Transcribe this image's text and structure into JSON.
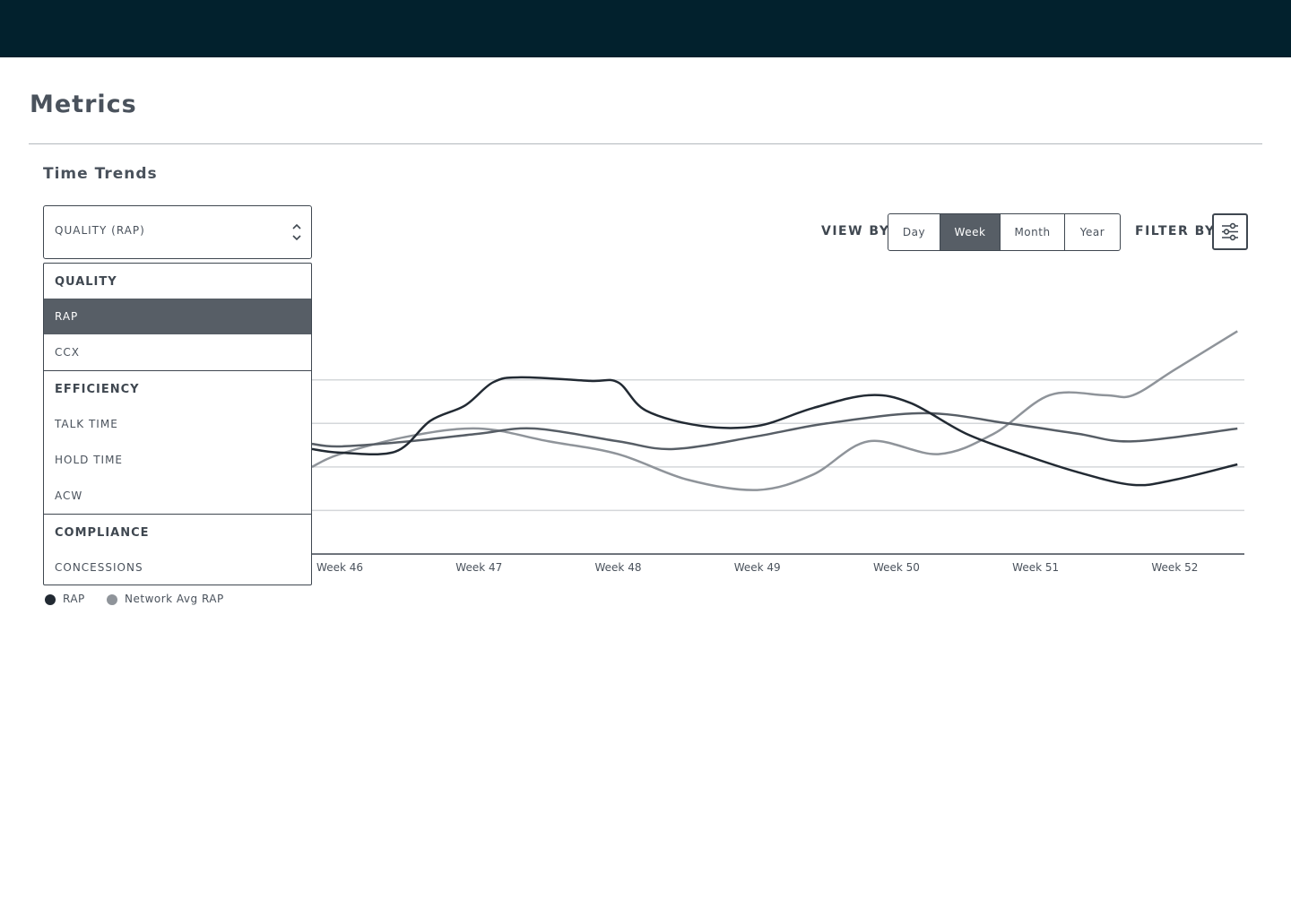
{
  "page": {
    "title": "Metrics"
  },
  "section": {
    "title": "Time Trends"
  },
  "metric_select": {
    "value": "QUALITY (RAP)",
    "groups": [
      {
        "label": "QUALITY",
        "items": [
          "RAP",
          "CCX"
        ]
      },
      {
        "label": "EFFICIENCY",
        "items": [
          "TALK TIME",
          "HOLD TIME",
          "ACW"
        ]
      },
      {
        "label": "COMPLIANCE",
        "items": [
          "CONCESSIONS"
        ]
      }
    ],
    "selected_item": "RAP"
  },
  "view_by": {
    "label": "VIEW BY",
    "options": [
      "Day",
      "Week",
      "Month",
      "Year"
    ],
    "active": "Week"
  },
  "filter_by": {
    "label": "FILTER BY",
    "icon": "sliders-icon"
  },
  "legend": [
    {
      "label": "RAP",
      "color": "#222a33"
    },
    {
      "label": "Network Avg RAP",
      "color": "#8f949a"
    }
  ],
  "colors": {
    "topbar": "#02212d",
    "accent_dark": "#575e66"
  },
  "chart_data": {
    "type": "line",
    "x_tick_labels": [
      "Week 46",
      "Week 47",
      "Week 48",
      "Week 49",
      "Week 50",
      "Week 51",
      "Week 52"
    ],
    "x_range": [
      45.8,
      52.5
    ],
    "y_range": [
      0,
      4.2
    ],
    "grid": true,
    "legend_placement": "bottom-left",
    "series": [
      {
        "name": "RAP",
        "color": "#222a33",
        "points": [
          [
            45.8,
            2.05
          ],
          [
            46.0,
            1.98
          ],
          [
            46.4,
            2.0
          ],
          [
            46.65,
            2.6
          ],
          [
            46.9,
            2.9
          ],
          [
            47.1,
            3.35
          ],
          [
            47.3,
            3.45
          ],
          [
            47.8,
            3.38
          ],
          [
            48.0,
            3.35
          ],
          [
            48.2,
            2.8
          ],
          [
            48.6,
            2.5
          ],
          [
            49.0,
            2.5
          ],
          [
            49.4,
            2.85
          ],
          [
            49.8,
            3.1
          ],
          [
            50.1,
            2.95
          ],
          [
            50.5,
            2.35
          ],
          [
            50.9,
            1.95
          ],
          [
            51.3,
            1.6
          ],
          [
            51.7,
            1.35
          ],
          [
            52.0,
            1.45
          ],
          [
            52.45,
            1.75
          ]
        ]
      },
      {
        "name": "Network Avg RAP",
        "color": "#8f949a",
        "points": [
          [
            45.8,
            1.7
          ],
          [
            46.0,
            1.95
          ],
          [
            46.5,
            2.3
          ],
          [
            47.0,
            2.45
          ],
          [
            47.5,
            2.2
          ],
          [
            48.0,
            1.95
          ],
          [
            48.5,
            1.45
          ],
          [
            49.0,
            1.25
          ],
          [
            49.4,
            1.55
          ],
          [
            49.8,
            2.2
          ],
          [
            50.3,
            1.95
          ],
          [
            50.7,
            2.35
          ],
          [
            51.1,
            3.1
          ],
          [
            51.5,
            3.1
          ],
          [
            51.7,
            3.1
          ],
          [
            52.0,
            3.6
          ],
          [
            52.45,
            4.35
          ]
        ]
      },
      {
        "name": "",
        "color": "#575e66",
        "points": [
          [
            45.8,
            2.15
          ],
          [
            46.0,
            2.1
          ],
          [
            46.5,
            2.2
          ],
          [
            47.0,
            2.35
          ],
          [
            47.4,
            2.45
          ],
          [
            48.0,
            2.2
          ],
          [
            48.4,
            2.05
          ],
          [
            49.0,
            2.3
          ],
          [
            49.5,
            2.55
          ],
          [
            50.2,
            2.75
          ],
          [
            50.8,
            2.55
          ],
          [
            51.3,
            2.35
          ],
          [
            51.7,
            2.2
          ],
          [
            52.45,
            2.45
          ]
        ]
      }
    ]
  }
}
